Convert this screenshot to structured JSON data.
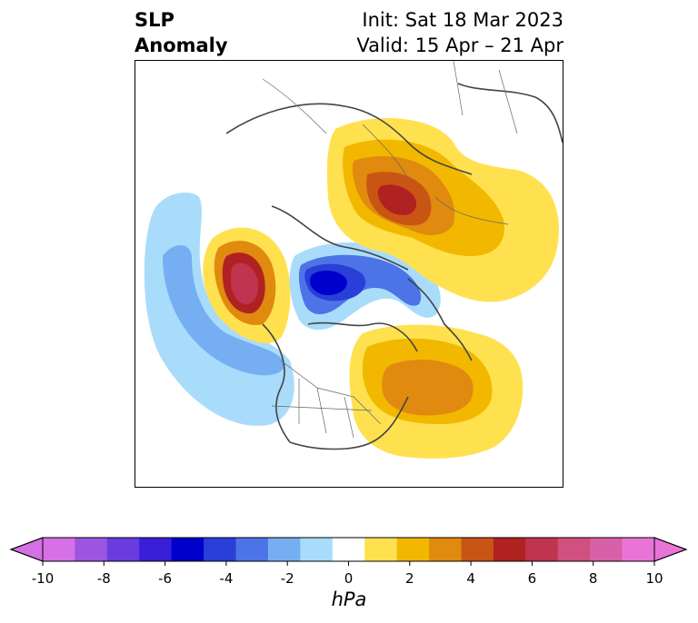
{
  "title": {
    "variable_line1": "SLP",
    "variable_line2": "Anomaly",
    "init": "Init: Sat 18 Mar 2023",
    "valid": "Valid: 15 Apr – 21 Apr"
  },
  "colorbar": {
    "units": "hPa",
    "tick_labels": [
      "-10",
      "-8",
      "-6",
      "-4",
      "-2",
      "0",
      "2",
      "4",
      "6",
      "8",
      "10"
    ],
    "colors": [
      "#d670e6",
      "#9b55e0",
      "#6a3ce0",
      "#3a1fd8",
      "#0000cc",
      "#2a3fd8",
      "#4c74e6",
      "#76aef2",
      "#a9dcfb",
      "#ffffff",
      "#ffe150",
      "#f2b800",
      "#e08a10",
      "#c95515",
      "#b02222",
      "#c03450",
      "#d05080",
      "#d860a8",
      "#e875d6"
    ],
    "under_color": "#d670e6",
    "over_color": "#e875d6"
  }
}
